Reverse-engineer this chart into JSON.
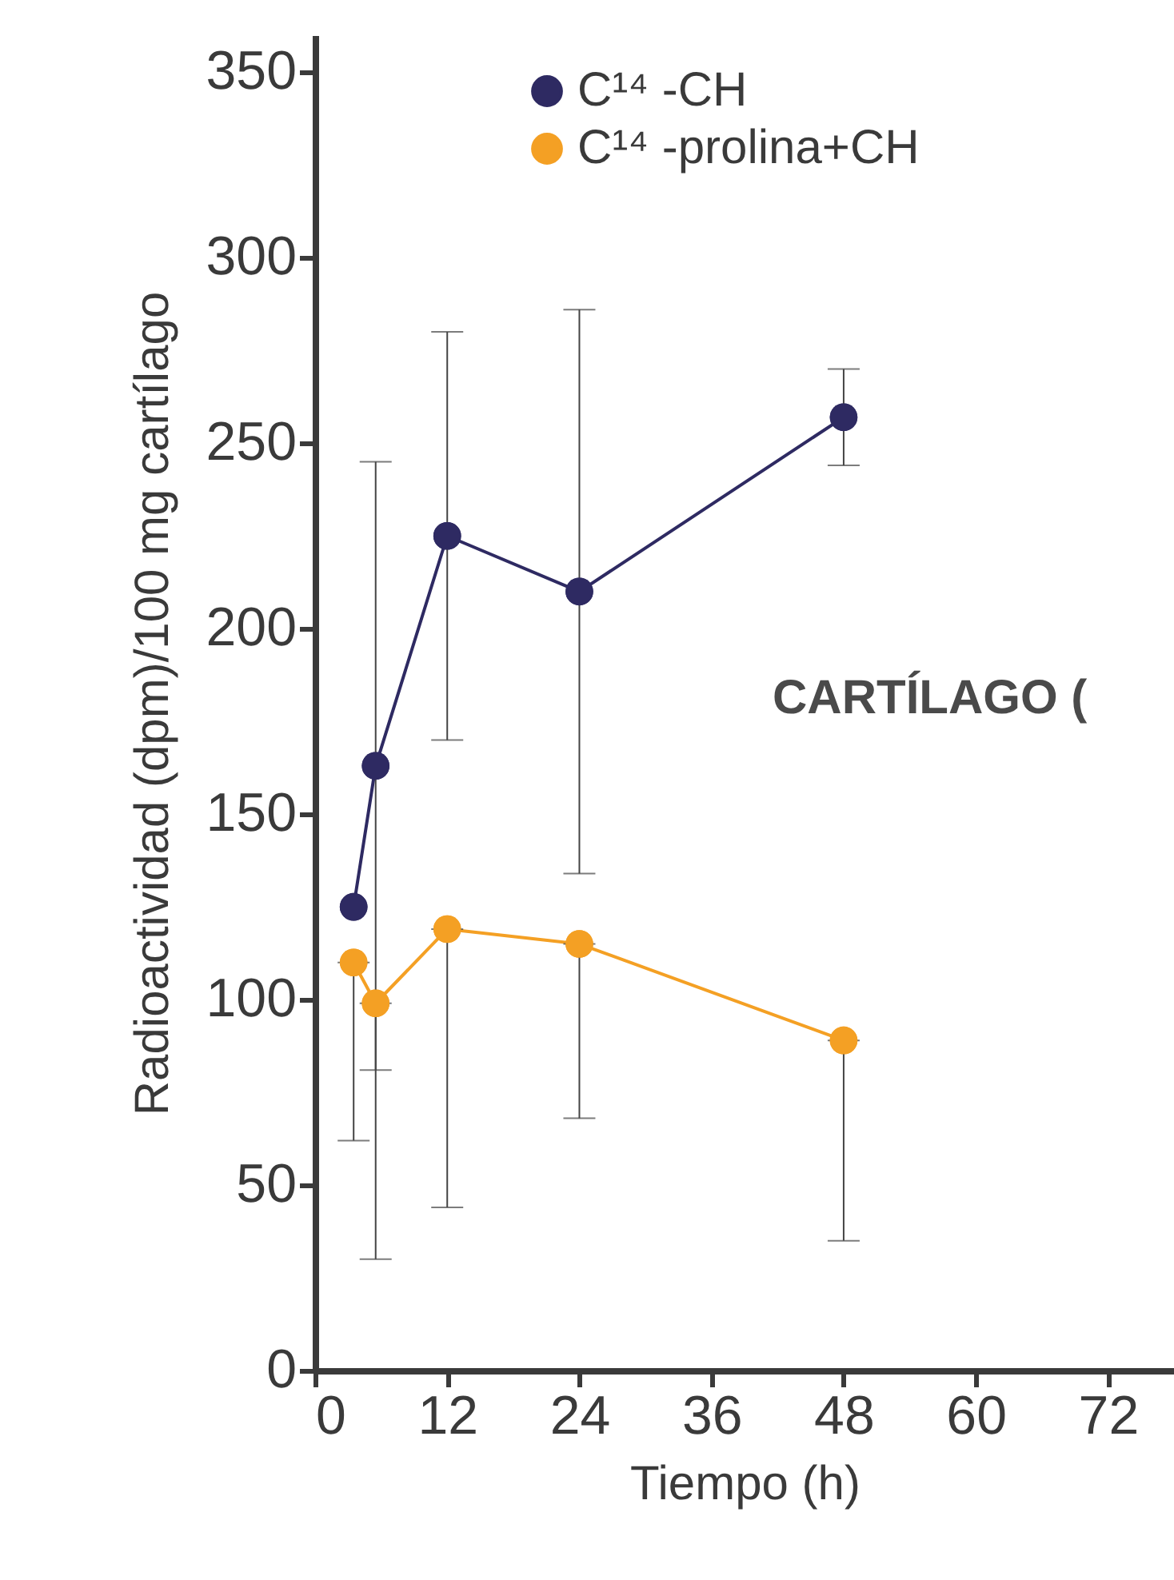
{
  "chart_data": {
    "type": "line",
    "xlabel": "Tiempo (h)",
    "ylabel": "Radioactividad (dpm)/100 mg cartílago",
    "x": [
      3.5,
      5.5,
      12,
      24,
      48
    ],
    "series": [
      {
        "name": "C¹⁴ -CH",
        "color": "#2e2a62",
        "values": [
          125,
          163,
          225,
          210,
          257
        ],
        "errors": [
          null,
          82,
          55,
          76,
          13
        ]
      },
      {
        "name": "C¹⁴ -prolina+CH",
        "color": "#f4a024",
        "values": [
          110,
          99,
          119,
          115,
          89
        ],
        "errors": [
          [
            62,
            110
          ],
          [
            30,
            99
          ],
          [
            44,
            119
          ],
          [
            68,
            115
          ],
          [
            35,
            89
          ]
        ]
      }
    ],
    "xlim": [
      0,
      78
    ],
    "xticks": [
      0,
      12,
      24,
      36,
      48,
      60,
      72
    ],
    "ylim": [
      0,
      360
    ],
    "yticks": [
      0,
      50,
      100,
      150,
      200,
      250,
      300,
      350
    ],
    "grid": false,
    "legend": "top left",
    "marker": "circle",
    "line_style": "solid",
    "annotations": [
      "CARTÍLAGO ("
    ]
  }
}
